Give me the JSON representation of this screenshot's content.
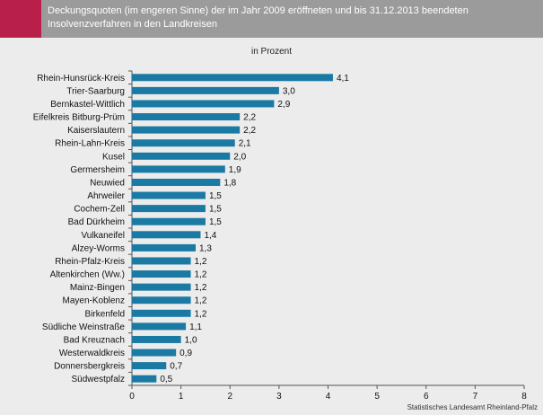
{
  "header": {
    "title": "Deckungsquoten (im engeren Sinne) der im Jahr 2009 eröffneten und bis 31.12.2013 beendeten Insolvenzverfahren in den Landkreisen",
    "subtitle": "in Prozent",
    "source": "Statistisches Landesamt Rheinland-Pfalz"
  },
  "colors": {
    "bar": "#1a7aa4",
    "accent": "#b81f4b",
    "header": "#9b9b9b",
    "background": "#ececec"
  },
  "chart_data": {
    "type": "bar",
    "orientation": "horizontal",
    "title": "Deckungsquoten (im engeren Sinne) der im Jahr 2009 eröffneten und bis 31.12.2013 beendeten Insolvenzverfahren in den Landkreisen",
    "subtitle": "in Prozent",
    "xlim": [
      0,
      8
    ],
    "xticks": [
      0,
      1,
      2,
      3,
      4,
      5,
      6,
      7,
      8
    ],
    "grid": false,
    "categories": [
      "Rhein-Hunsrück-Kreis",
      "Trier-Saarburg",
      "Bernkastel-Wittlich",
      "Eifelkreis Bitburg-Prüm",
      "Kaiserslautern",
      "Rhein-Lahn-Kreis",
      "Kusel",
      "Germersheim",
      "Neuwied",
      "Ahrweiler",
      "Cochem-Zell",
      "Bad Dürkheim",
      "Vulkaneifel",
      "Alzey-Worms",
      "Rhein-Pfalz-Kreis",
      "Altenkirchen (Ww.)",
      "Mainz-Bingen",
      "Mayen-Koblenz",
      "Birkenfeld",
      "Südliche Weinstraße",
      "Bad Kreuznach",
      "Westerwaldkreis",
      "Donnersbergkreis",
      "Südwestpfalz"
    ],
    "values": [
      4.1,
      3.0,
      2.9,
      2.2,
      2.2,
      2.1,
      2.0,
      1.9,
      1.8,
      1.5,
      1.5,
      1.5,
      1.4,
      1.3,
      1.2,
      1.2,
      1.2,
      1.2,
      1.2,
      1.1,
      1.0,
      0.9,
      0.7,
      0.5
    ],
    "value_labels": [
      "4,1",
      "3,0",
      "2,9",
      "2,2",
      "2,2",
      "2,1",
      "2,0",
      "1,9",
      "1,8",
      "1,5",
      "1,5",
      "1,5",
      "1,4",
      "1,3",
      "1,2",
      "1,2",
      "1,2",
      "1,2",
      "1,2",
      "1,1",
      "1,0",
      "0,9",
      "0,7",
      "0,5"
    ]
  }
}
